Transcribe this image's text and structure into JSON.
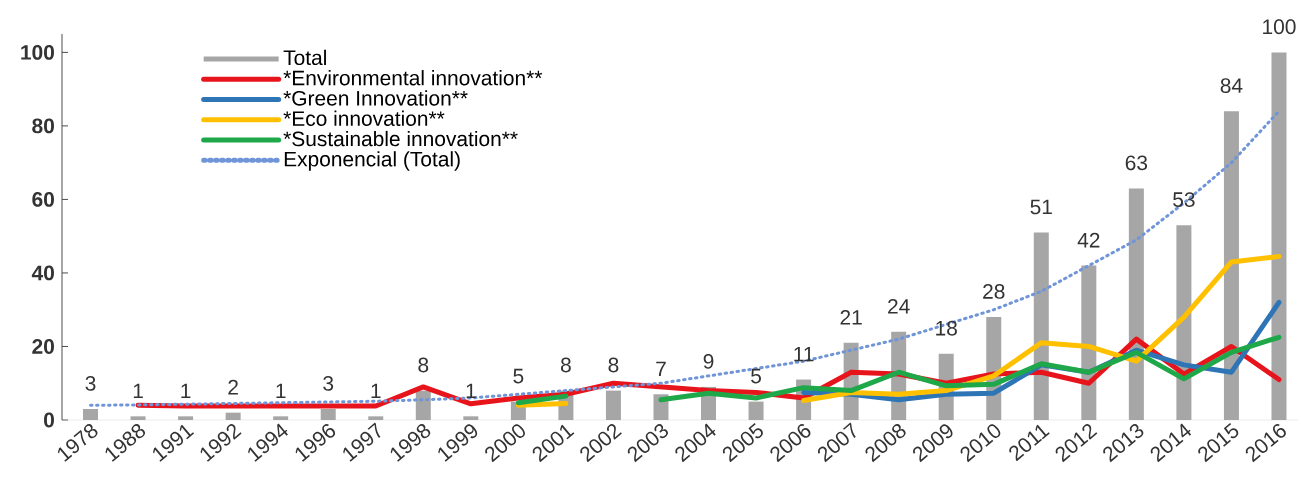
{
  "chart_data": {
    "type": "bar",
    "categories": [
      "1978",
      "1988",
      "1991",
      "1992",
      "1994",
      "1996",
      "1997",
      "1998",
      "1999",
      "2000",
      "2001",
      "2002",
      "2003",
      "2004",
      "2005",
      "2006",
      "2007",
      "2008",
      "2009",
      "2010",
      "2011",
      "2012",
      "2013",
      "2014",
      "2015",
      "2016"
    ],
    "series": [
      {
        "name": "Total",
        "color": "#a6a6a6",
        "values": [
          3,
          1,
          1,
          2,
          1,
          3,
          1,
          8,
          1,
          5,
          8,
          8,
          7,
          9,
          5,
          11,
          21,
          24,
          18,
          28,
          51,
          42,
          63,
          53,
          84,
          100
        ],
        "value_labels": [
          "3",
          "1",
          "1",
          "2",
          "1",
          "3",
          "1",
          "8",
          "1",
          "5",
          "8",
          "8",
          "7",
          "9",
          "5",
          "11",
          "21",
          "24",
          "18",
          "28",
          "51",
          "42",
          "63",
          "53",
          "84",
          "100"
        ]
      },
      {
        "name": "*Environmental innovation**",
        "type": "line",
        "color": "#e8141b",
        "values": [
          null,
          4,
          3.8,
          3.8,
          3.8,
          3.8,
          3.8,
          9,
          4.4,
          6,
          7,
          10,
          9,
          8,
          7.5,
          6,
          13,
          12.5,
          10,
          12.5,
          13,
          10,
          22,
          12.5,
          20,
          11
        ]
      },
      {
        "name": "*Green Innovation**",
        "type": "line",
        "color": "#2e75b6",
        "values": [
          null,
          null,
          null,
          null,
          null,
          null,
          null,
          null,
          null,
          null,
          null,
          null,
          null,
          null,
          null,
          7.5,
          7,
          5.5,
          7,
          7.3,
          15,
          13,
          19,
          15,
          13,
          32
        ]
      },
      {
        "name": "*Eco innovation**",
        "type": "line",
        "color": "#ffc000",
        "values": [
          null,
          null,
          null,
          null,
          null,
          null,
          null,
          null,
          null,
          4,
          4.5,
          null,
          null,
          null,
          null,
          5.3,
          7.5,
          7,
          8,
          12,
          21,
          20,
          16,
          28,
          43,
          44.5
        ]
      },
      {
        "name": "*Sustainable innovation**",
        "type": "line",
        "color": "#1ea84a",
        "values": [
          null,
          null,
          null,
          null,
          null,
          null,
          null,
          null,
          null,
          4.7,
          6.5,
          null,
          5.5,
          7.3,
          6,
          8.8,
          8,
          13,
          9.3,
          9.7,
          15.3,
          13,
          18.4,
          11.2,
          18.4,
          22.5
        ]
      },
      {
        "name": "Exponencial (Total)",
        "type": "line",
        "line_style": "dotted",
        "color": "#6f95d8",
        "values": [
          4,
          4.1,
          4.3,
          4.5,
          4.7,
          4.9,
          5.1,
          5.5,
          6,
          7,
          8,
          9,
          10,
          12,
          14,
          16,
          19,
          22,
          26,
          30,
          35,
          42,
          49,
          59,
          70,
          84
        ]
      }
    ],
    "ylim": [
      0,
      105
    ],
    "yticks": [
      0,
      20,
      40,
      60,
      80,
      100
    ],
    "legend": "top left",
    "marker": "none",
    "grid": false
  }
}
